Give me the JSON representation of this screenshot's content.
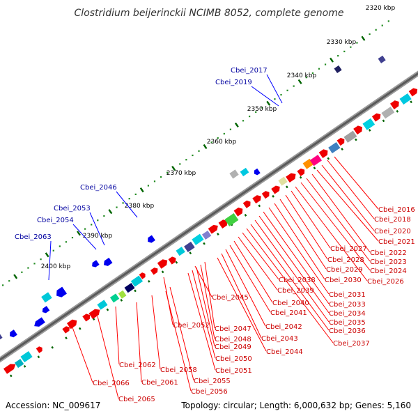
{
  "title": "Clostridium beijerinckii NCIMB 8052, complete genome",
  "footer": {
    "accession": "Accession: NC_009617",
    "summary": "Topology: circular; Length: 6,000,632 bp; Genes: 5,160"
  },
  "colors": {
    "backbone": "#808080",
    "tick_major": "#006400",
    "tick_minor": "#228b22",
    "label_top": "#0000a0",
    "label_bottom": "#cc0000",
    "leader_top": "#0000ff",
    "leader_bottom": "#ff0000",
    "reverse_strand": "#0000ee",
    "forward_strand": "#ee0000"
  },
  "scale_labels": [
    "2320 kbp",
    "2330 kbp",
    "2340 kbp",
    "2350 kbp",
    "2360 kbp",
    "2370 kbp",
    "2380 kbp",
    "2390 kbp",
    "2400 kbp"
  ],
  "top_labels": [
    "Cbei_2017",
    "Cbei_2019",
    "Cbei_2046",
    "Cbei_2053",
    "Cbei_2054",
    "Cbei_2063"
  ],
  "bottom_labels": [
    "Cbei_2016",
    "Cbei_2018",
    "Cbei_2020",
    "Cbei_2021",
    "Cbei_2022",
    "Cbei_2023",
    "Cbei_2024",
    "Cbei_2026",
    "Cbei_2027",
    "Cbei_2028",
    "Cbei_2029",
    "Cbei_2030",
    "Cbei_2031",
    "Cbei_2033",
    "Cbei_2034",
    "Cbei_2035",
    "Cbei_2036",
    "Cbei_2037",
    "Cbei_2038",
    "Cbei_2039",
    "Cbei_2040",
    "Cbei_2041",
    "Cbei_2042",
    "Cbei_2043",
    "Cbei_2044",
    "Cbei_2045",
    "Cbei_2047",
    "Cbei_2048",
    "Cbei_2049",
    "Cbei_2050",
    "Cbei_2051",
    "Cbei_2052",
    "Cbei_2055",
    "Cbei_2056",
    "Cbei_2058",
    "Cbei_2061",
    "Cbei_2062",
    "Cbei_2065",
    "Cbei_2066"
  ]
}
